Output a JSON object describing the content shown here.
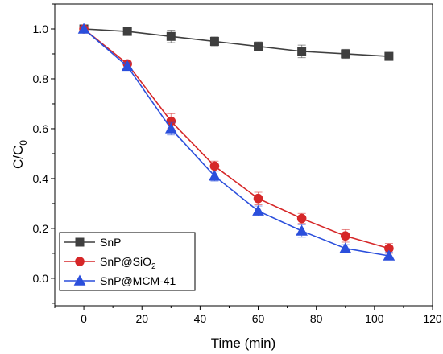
{
  "chart_data": {
    "type": "line",
    "xlabel": "Time (min)",
    "ylabel_main": "C/C",
    "ylabel_sub": "0",
    "xlim": [
      -10,
      120
    ],
    "ylim": [
      -0.11,
      1.1
    ],
    "xticks": [
      0,
      20,
      40,
      60,
      80,
      100,
      120
    ],
    "xtick_labels": [
      "0",
      "20",
      "40",
      "60",
      "80",
      "100",
      "120"
    ],
    "yticks": [
      0.0,
      0.2,
      0.4,
      0.6,
      0.8,
      1.0
    ],
    "ytick_labels": [
      "0.0",
      "0.2",
      "0.4",
      "0.6",
      "0.8",
      "1.0"
    ],
    "x": [
      0,
      15,
      30,
      45,
      60,
      75,
      90,
      105
    ],
    "legend_position": "bottom-left",
    "series": [
      {
        "name": "SnP",
        "name_parts": [
          "SnP",
          ""
        ],
        "marker": "square",
        "color": "#3f3f3f",
        "values": [
          1.0,
          0.99,
          0.97,
          0.95,
          0.93,
          0.91,
          0.9,
          0.89
        ],
        "errors": [
          0.01,
          0.015,
          0.025,
          0.018,
          0.018,
          0.025,
          0.018,
          0.015
        ]
      },
      {
        "name": "SnP@SiO2",
        "name_parts": [
          "SnP@SiO",
          "2"
        ],
        "marker": "circle",
        "color": "#d62728",
        "values": [
          1.0,
          0.86,
          0.63,
          0.45,
          0.32,
          0.24,
          0.17,
          0.12
        ],
        "errors": [
          0.01,
          0.015,
          0.03,
          0.02,
          0.025,
          0.02,
          0.025,
          0.02
        ]
      },
      {
        "name": "SnP@MCM-41",
        "name_parts": [
          "SnP@MCM-41",
          ""
        ],
        "marker": "triangle",
        "color": "#2b4fdc",
        "values": [
          1.0,
          0.85,
          0.6,
          0.41,
          0.27,
          0.19,
          0.12,
          0.09
        ],
        "errors": [
          0.01,
          0.015,
          0.025,
          0.02,
          0.02,
          0.025,
          0.015,
          0.015
        ]
      }
    ]
  }
}
